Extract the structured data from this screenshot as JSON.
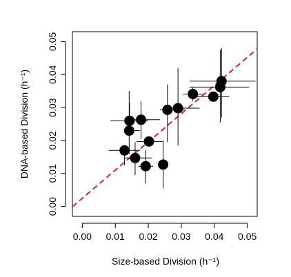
{
  "chart_data": {
    "type": "scatter",
    "title": "",
    "xlabel": "Size-based Division (h⁻¹)",
    "ylabel": "DNA-based Division (h⁻¹)",
    "xlim": [
      -0.003,
      0.053
    ],
    "ylim": [
      -0.003,
      0.053
    ],
    "xticks": [
      "0.00",
      "0.01",
      "0.02",
      "0.03",
      "0.04",
      "0.05"
    ],
    "yticks": [
      "0.00",
      "0.01",
      "0.02",
      "0.03",
      "0.04",
      "0.05"
    ],
    "grid": false,
    "legend": "none",
    "fit_line": {
      "intercept": 0.0025,
      "slope": 0.855,
      "color": "#d62728",
      "style": "dashed"
    },
    "point_color": "#000000",
    "points": [
      {
        "x": 0.0128,
        "y": 0.017,
        "xerr": [
          0.008,
          0.0175
        ],
        "yerr": [
          0.0125,
          0.0185
        ]
      },
      {
        "x": 0.0142,
        "y": 0.023,
        "xerr": [
          0.013,
          0.0175
        ],
        "yerr": [
          0.016,
          0.035
        ]
      },
      {
        "x": 0.0143,
        "y": 0.026,
        "xerr": [
          0.0085,
          0.02
        ],
        "yerr": [
          0.0225,
          0.0315
        ]
      },
      {
        "x": 0.016,
        "y": 0.0147,
        "xerr": [
          0.013,
          0.021
        ],
        "yerr": [
          0.0095,
          0.0195
        ]
      },
      {
        "x": 0.0178,
        "y": 0.0263,
        "xerr": [
          0.014,
          0.0235
        ],
        "yerr": [
          0.0205,
          0.032
        ]
      },
      {
        "x": 0.0192,
        "y": 0.0122,
        "xerr": [
          0.017,
          0.0215
        ],
        "yerr": [
          0.007,
          0.017
        ]
      },
      {
        "x": 0.0202,
        "y": 0.0197,
        "xerr": [
          0.0165,
          0.0245
        ],
        "yerr": [
          0.019,
          0.0205
        ]
      },
      {
        "x": 0.0245,
        "y": 0.0127,
        "xerr": [
          0.0235,
          0.0255
        ],
        "yerr": [
          0.0055,
          0.02
        ]
      },
      {
        "x": 0.0258,
        "y": 0.0293,
        "xerr": [
          0.0235,
          0.031
        ],
        "yerr": [
          0.0195,
          0.037
        ]
      },
      {
        "x": 0.029,
        "y": 0.0298,
        "xerr": [
          0.0245,
          0.0355
        ],
        "yerr": [
          0.0185,
          0.042
        ]
      },
      {
        "x": 0.0335,
        "y": 0.0341,
        "xerr": [
          0.0305,
          0.0365
        ],
        "yerr": [
          0.032,
          0.036
        ]
      },
      {
        "x": 0.0397,
        "y": 0.0333,
        "xerr": [
          0.0345,
          0.0445
        ],
        "yerr": [
          0.032,
          0.0345
        ]
      },
      {
        "x": 0.0418,
        "y": 0.0362,
        "xerr": [
          0.0325,
          0.0505
        ],
        "yerr": [
          0.0255,
          0.0475
        ]
      },
      {
        "x": 0.0422,
        "y": 0.038,
        "xerr": [
          0.0325,
          0.0525
        ],
        "yerr": [
          0.027,
          0.048
        ]
      }
    ]
  }
}
